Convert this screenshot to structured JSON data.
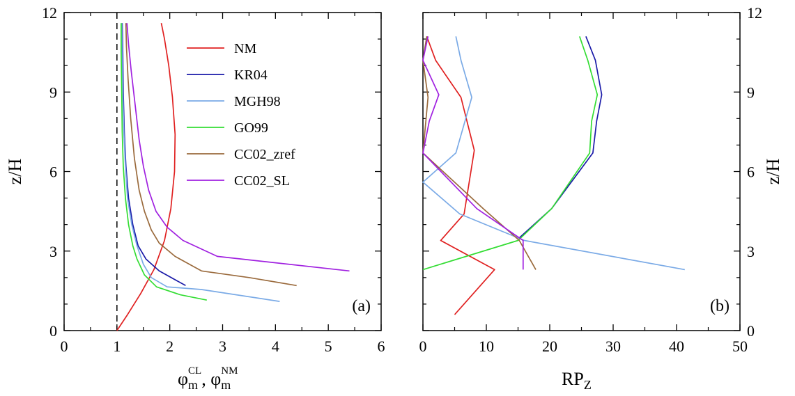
{
  "chart_data": [
    {
      "type": "line",
      "panel_label": "(a)",
      "xlabel": "φ_m^CL, φ_m^NM",
      "xlabel_parts": {
        "main1": "φ",
        "sub1": "m",
        "sup1": "CL",
        "sep": ", ",
        "main2": "φ",
        "sub2": "m",
        "sup2": "NM"
      },
      "ylabel": "z/H",
      "xlim": [
        0,
        6
      ],
      "ylim": [
        0,
        12
      ],
      "xticks": [
        "0",
        "1",
        "2",
        "3",
        "4",
        "5",
        "6"
      ],
      "yticks": [
        "0",
        "3",
        "6",
        "9",
        "12"
      ],
      "reference_line": {
        "x": 1,
        "style": "dashed"
      },
      "legend_position": "upper-center",
      "series": [
        {
          "name": "NM",
          "color": "#e02020",
          "points": [
            [
              1.0,
              0
            ],
            [
              1.2,
              0.6
            ],
            [
              1.45,
              1.4
            ],
            [
              1.7,
              2.3
            ],
            [
              1.9,
              3.4
            ],
            [
              2.02,
              4.6
            ],
            [
              2.09,
              6.0
            ],
            [
              2.1,
              7.4
            ],
            [
              2.05,
              8.8
            ],
            [
              1.98,
              10.0
            ],
            [
              1.9,
              11.0
            ],
            [
              1.84,
              11.6
            ]
          ]
        },
        {
          "name": "KR04",
          "color": "#1a1aa8",
          "points": [
            [
              2.3,
              1.7
            ],
            [
              1.8,
              2.25
            ],
            [
              1.55,
              2.7
            ],
            [
              1.4,
              3.2
            ],
            [
              1.3,
              4.0
            ],
            [
              1.22,
              5.0
            ],
            [
              1.17,
              6.2
            ],
            [
              1.14,
              7.5
            ],
            [
              1.12,
              9.0
            ],
            [
              1.11,
              10.5
            ],
            [
              1.1,
              11.6
            ]
          ]
        },
        {
          "name": "MGH98",
          "color": "#7aaae6",
          "points": [
            [
              4.08,
              1.1
            ],
            [
              2.6,
              1.55
            ],
            [
              1.95,
              1.65
            ],
            [
              1.65,
              2.0
            ],
            [
              1.5,
              2.5
            ],
            [
              1.38,
              3.2
            ],
            [
              1.28,
              4.0
            ],
            [
              1.2,
              5.0
            ],
            [
              1.16,
              6.2
            ],
            [
              1.13,
              7.5
            ],
            [
              1.11,
              9.0
            ],
            [
              1.1,
              10.5
            ],
            [
              1.09,
              11.6
            ]
          ]
        },
        {
          "name": "GO99",
          "color": "#33dd33",
          "points": [
            [
              2.7,
              1.15
            ],
            [
              2.2,
              1.35
            ],
            [
              1.75,
              1.65
            ],
            [
              1.52,
              2.1
            ],
            [
              1.38,
              2.7
            ],
            [
              1.3,
              3.2
            ],
            [
              1.22,
              4.0
            ],
            [
              1.16,
              5.0
            ],
            [
              1.12,
              6.2
            ],
            [
              1.1,
              7.5
            ],
            [
              1.09,
              9.0
            ],
            [
              1.08,
              10.5
            ],
            [
              1.08,
              11.6
            ]
          ]
        },
        {
          "name": "CC02_zref",
          "color": "#9a6a3c",
          "points": [
            [
              4.4,
              1.7
            ],
            [
              3.5,
              2.0
            ],
            [
              2.6,
              2.25
            ],
            [
              2.1,
              2.8
            ],
            [
              1.8,
              3.3
            ],
            [
              1.65,
              3.8
            ],
            [
              1.52,
              4.5
            ],
            [
              1.42,
              5.3
            ],
            [
              1.33,
              6.5
            ],
            [
              1.26,
              8.0
            ],
            [
              1.21,
              9.5
            ],
            [
              1.18,
              10.7
            ],
            [
              1.17,
              11.6
            ]
          ]
        },
        {
          "name": "CC02_SL",
          "color": "#a020e0",
          "points": [
            [
              5.4,
              2.25
            ],
            [
              2.9,
              2.8
            ],
            [
              2.25,
              3.4
            ],
            [
              1.95,
              3.9
            ],
            [
              1.74,
              4.5
            ],
            [
              1.6,
              5.3
            ],
            [
              1.5,
              6.2
            ],
            [
              1.42,
              7.2
            ],
            [
              1.34,
              8.6
            ],
            [
              1.27,
              9.8
            ],
            [
              1.22,
              10.8
            ],
            [
              1.19,
              11.6
            ]
          ]
        }
      ]
    },
    {
      "type": "line",
      "panel_label": "(b)",
      "xlabel": "RP_Z",
      "xlabel_parts": {
        "main": "RP",
        "sub": "Z"
      },
      "ylabel": "z/H",
      "xlim": [
        0,
        50
      ],
      "ylim": [
        0,
        12
      ],
      "xticks": [
        "0",
        "10",
        "20",
        "30",
        "40",
        "50"
      ],
      "yticks": [
        "0",
        "3",
        "6",
        "9",
        "12"
      ],
      "series": [
        {
          "name": "NM",
          "color": "#e02020",
          "points": [
            [
              5.0,
              0.6
            ],
            [
              11.3,
              2.3
            ],
            [
              2.8,
              3.4
            ],
            [
              6.5,
              4.4
            ],
            [
              8.1,
              6.8
            ],
            [
              6.0,
              8.8
            ],
            [
              2.0,
              10.2
            ],
            [
              0.6,
              11.1
            ]
          ]
        },
        {
          "name": "KR04",
          "color": "#1a1aa8",
          "points": [
            [
              15.2,
              3.5
            ],
            [
              20.3,
              4.6
            ],
            [
              26.8,
              6.7
            ],
            [
              27.4,
              7.9
            ],
            [
              28.2,
              8.9
            ],
            [
              27.2,
              10.2
            ],
            [
              25.7,
              11.1
            ]
          ]
        },
        {
          "name": "MGH98",
          "color": "#7aaae6",
          "points": [
            [
              41.3,
              2.3
            ],
            [
              16.0,
              3.4
            ],
            [
              5.8,
              4.4
            ],
            [
              0.0,
              5.6
            ],
            [
              5.2,
              6.7
            ],
            [
              7.7,
              8.8
            ],
            [
              6.0,
              10.2
            ],
            [
              5.2,
              11.1
            ]
          ]
        },
        {
          "name": "GO99",
          "color": "#33dd33",
          "points": [
            [
              0.0,
              2.3
            ],
            [
              15.0,
              3.4
            ],
            [
              20.3,
              4.6
            ],
            [
              26.3,
              6.7
            ],
            [
              26.6,
              7.9
            ],
            [
              27.5,
              8.9
            ],
            [
              26.0,
              10.2
            ],
            [
              24.7,
              11.1
            ]
          ]
        },
        {
          "name": "CC02_zref",
          "color": "#9a6a3c",
          "points": [
            [
              17.8,
              2.3
            ],
            [
              15.2,
              3.4
            ],
            [
              9.5,
              4.6
            ],
            [
              0.0,
              6.7
            ],
            [
              0.8,
              8.8
            ],
            [
              0.0,
              10.2
            ],
            [
              0.6,
              11.1
            ]
          ]
        },
        {
          "name": "CC02_SL",
          "color": "#a020e0",
          "points": [
            [
              15.8,
              2.3
            ],
            [
              15.8,
              3.4
            ],
            [
              8.5,
              4.6
            ],
            [
              0.0,
              6.7
            ],
            [
              1.0,
              7.9
            ],
            [
              2.5,
              8.9
            ],
            [
              0.0,
              10.2
            ],
            [
              0.8,
              11.1
            ]
          ]
        }
      ]
    }
  ]
}
